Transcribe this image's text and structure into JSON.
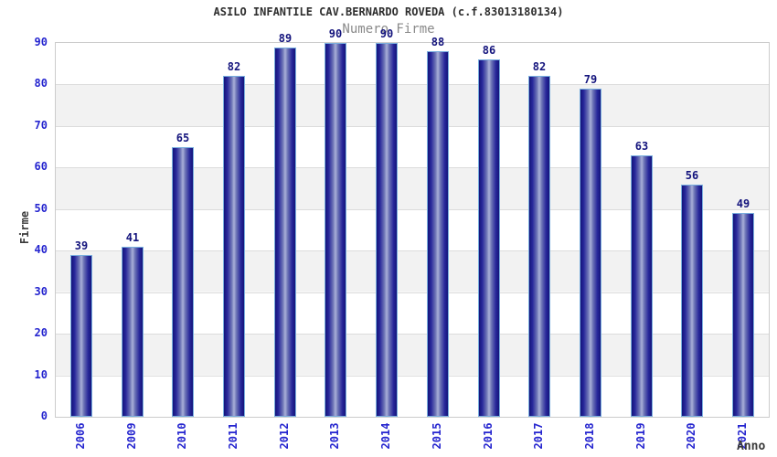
{
  "title": "ASILO INFANTILE CAV.BERNARDO ROVEDA (c.f.83013180134)",
  "subtitle": "Numero Firme",
  "chart_data": {
    "type": "bar",
    "title": "ASILO INFANTILE CAV.BERNARDO ROVEDA (c.f.83013180134)",
    "subtitle": "Numero Firme",
    "categories": [
      "2006",
      "2009",
      "2010",
      "2011",
      "2012",
      "2013",
      "2014",
      "2015",
      "2016",
      "2017",
      "2018",
      "2019",
      "2020",
      "2021"
    ],
    "values": [
      39,
      41,
      65,
      82,
      89,
      90,
      90,
      88,
      86,
      82,
      79,
      63,
      56,
      49
    ],
    "xlabel": "Anno",
    "ylabel": "Firme",
    "ylim": [
      0,
      90
    ],
    "ytick_step": 10,
    "yticks": [
      0,
      10,
      20,
      30,
      40,
      50,
      60,
      70,
      80,
      90
    ],
    "grid": "horizontal-bands",
    "legend": "none",
    "bar_labels_shown": true
  },
  "colors": {
    "bar_dark": "#14147a",
    "bar_light": "#a9b0d8",
    "bar_border": "#79aede",
    "value_label": "#14147d",
    "axis_tick_label": "#2525cf",
    "band_gray": "#f2f2f2",
    "band_white": "#ffffff",
    "gridline": "#dcdcdc",
    "plot_border": "#cccccc",
    "title_text": "#2e2e2e",
    "subtitle_text": "#8a8a8a",
    "axis_title_text": "#3a3a3a",
    "background": "#ffffff"
  }
}
